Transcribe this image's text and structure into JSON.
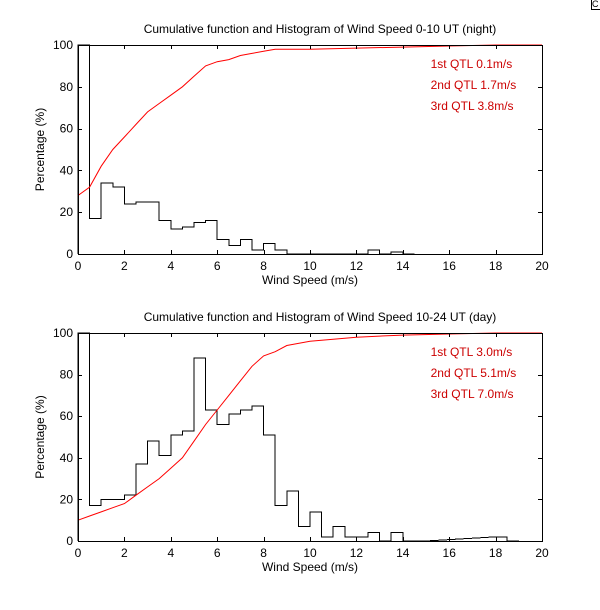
{
  "corner_glyph": "C",
  "colors": {
    "cumulative": "#ff0000",
    "histogram": "#000000",
    "annotation": "#cc0000",
    "axes": "#000000",
    "background": "#ffffff"
  },
  "chart_data": [
    {
      "type": "line",
      "title": "Cumulative function and Histogram of Wind Speed 0-10 UT (night)",
      "xlabel": "Wind Speed (m/s)",
      "ylabel": "Percentage (%)",
      "xlim": [
        0,
        20
      ],
      "ylim": [
        0,
        100
      ],
      "xticks": [
        0,
        2,
        4,
        6,
        8,
        10,
        12,
        14,
        16,
        18,
        20
      ],
      "yticks": [
        0,
        20,
        40,
        60,
        80,
        100
      ],
      "grid": false,
      "annotations": [
        "1st QTL 0.1m/s",
        "2nd QTL 1.7m/s",
        "3rd QTL 3.8m/s"
      ],
      "series": [
        {
          "kind": "cumulative",
          "x": [
            0,
            0.5,
            1,
            1.5,
            2,
            2.5,
            3,
            3.5,
            4,
            4.5,
            5,
            5.5,
            6,
            6.5,
            7,
            7.5,
            8,
            8.5,
            9,
            10,
            12,
            14,
            16,
            18,
            20
          ],
          "y": [
            28,
            32,
            42,
            50,
            56,
            62,
            68,
            72,
            76,
            80,
            85,
            90,
            92,
            93,
            95,
            96,
            97,
            98,
            98,
            98,
            98.5,
            99,
            99.5,
            100,
            100
          ]
        },
        {
          "kind": "histogram",
          "bin_width": 0.5,
          "bin_starts": [
            0,
            0.5,
            1,
            1.5,
            2,
            2.5,
            3,
            3.5,
            4,
            4.5,
            5,
            5.5,
            6,
            6.5,
            7,
            7.5,
            8,
            8.5,
            9,
            9.5,
            10,
            10.5,
            11,
            11.5,
            12,
            12.5,
            13,
            13.5,
            14
          ],
          "values": [
            100,
            17,
            34,
            32,
            24,
            25,
            25,
            16,
            12,
            13,
            15,
            16,
            7,
            4,
            7,
            2,
            5,
            2,
            0,
            0,
            0,
            0,
            0,
            0,
            0,
            2,
            0,
            1,
            0
          ]
        }
      ]
    },
    {
      "type": "line",
      "title": "Cumulative function and Histogram of Wind Speed 10-24 UT (day)",
      "xlabel": "Wind Speed (m/s)",
      "ylabel": "Percentage (%)",
      "xlim": [
        0,
        20
      ],
      "ylim": [
        0,
        100
      ],
      "xticks": [
        0,
        2,
        4,
        6,
        8,
        10,
        12,
        14,
        16,
        18,
        20
      ],
      "yticks": [
        0,
        20,
        40,
        60,
        80,
        100
      ],
      "grid": false,
      "annotations": [
        "1st QTL 3.0m/s",
        "2nd QTL 5.1m/s",
        "3rd QTL 7.0m/s"
      ],
      "series": [
        {
          "kind": "cumulative",
          "x": [
            0,
            0.5,
            1,
            1.5,
            2,
            2.5,
            3,
            3.5,
            4,
            4.5,
            5,
            5.5,
            6,
            6.5,
            7,
            7.5,
            8,
            8.5,
            9,
            9.5,
            10,
            11,
            12,
            13,
            14,
            16,
            18,
            20
          ],
          "y": [
            10,
            12,
            14,
            16,
            18,
            22,
            26,
            30,
            35,
            40,
            48,
            56,
            63,
            70,
            77,
            84,
            89,
            91,
            94,
            95,
            96,
            97,
            98,
            98.5,
            99,
            99.5,
            100,
            100
          ]
        },
        {
          "kind": "histogram",
          "bin_width": 0.5,
          "bin_starts": [
            0,
            0.5,
            1,
            1.5,
            2,
            2.5,
            3,
            3.5,
            4,
            4.5,
            5,
            5.5,
            6,
            6.5,
            7,
            7.5,
            8,
            8.5,
            9,
            9.5,
            10,
            10.5,
            11,
            11.5,
            12,
            12.5,
            13,
            13.5,
            14,
            14.5,
            18,
            18.5
          ],
          "values": [
            100,
            17,
            20,
            20,
            22,
            37,
            48,
            41,
            51,
            53,
            88,
            63,
            56,
            61,
            63,
            65,
            51,
            17,
            24,
            7,
            14,
            2,
            7,
            2,
            2,
            4,
            0,
            4,
            0,
            0,
            2,
            0
          ]
        }
      ]
    }
  ]
}
